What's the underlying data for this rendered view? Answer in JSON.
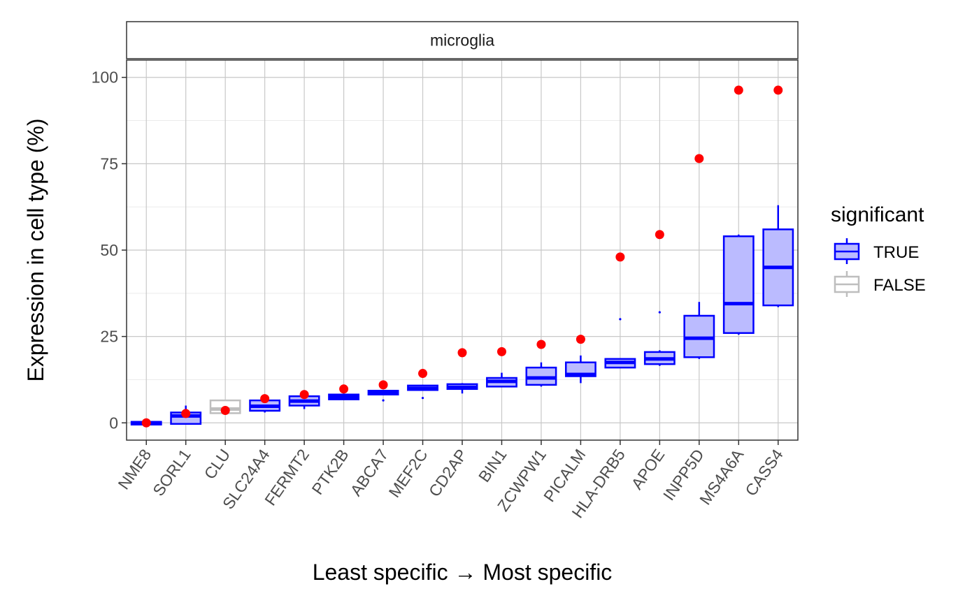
{
  "chart_data": {
    "type": "box",
    "facet": "microglia",
    "xlabel": "Least specific → Most specific",
    "ylabel": "Expression in cell type (%)",
    "ylim": [
      -5,
      105
    ],
    "yticks": [
      0,
      25,
      50,
      75,
      100
    ],
    "grid": true,
    "legend": {
      "title": "significant",
      "position": "right",
      "entries": [
        {
          "label": "TRUE",
          "color": "#0000ff",
          "fill": "#bbbbff"
        },
        {
          "label": "FALSE",
          "color": "#bebebe",
          "fill": "#ffffff"
        }
      ]
    },
    "colors": {
      "true_stroke": "#0000ff",
      "true_fill": "#bbbbff",
      "false_stroke": "#bebebe",
      "point": "#ff0000",
      "grid": "#c8c8c8",
      "grid_minor": "#ebebeb"
    },
    "categories": [
      "NME8",
      "SORL1",
      "CLU",
      "SLC24A4",
      "FERMT2",
      "PTK2B",
      "ABCA7",
      "MEF2C",
      "CD2AP",
      "BIN1",
      "ZCWPW1",
      "PICALM",
      "HLA-DRB5",
      "APOE",
      "INPP5D",
      "MS4A6A",
      "CASS4"
    ],
    "boxes": [
      {
        "significant": true,
        "q1": -0.5,
        "median": 0.0,
        "q3": 0.3,
        "wlo": -0.5,
        "whi": 0.3,
        "outliers": []
      },
      {
        "significant": true,
        "q1": -0.3,
        "median": 2.0,
        "q3": 3.0,
        "wlo": -0.3,
        "whi": 5.0,
        "outliers": []
      },
      {
        "significant": false,
        "q1": 2.8,
        "median": 4.0,
        "q3": 6.5,
        "wlo": 2.8,
        "whi": 6.5,
        "outliers": []
      },
      {
        "significant": true,
        "q1": 3.5,
        "median": 4.8,
        "q3": 6.5,
        "wlo": 3.0,
        "whi": 7.0,
        "outliers": []
      },
      {
        "significant": true,
        "q1": 5.0,
        "median": 6.3,
        "q3": 7.7,
        "wlo": 4.0,
        "whi": 8.0,
        "outliers": []
      },
      {
        "significant": true,
        "q1": 6.8,
        "median": 7.5,
        "q3": 8.2,
        "wlo": 6.8,
        "whi": 8.5,
        "outliers": []
      },
      {
        "significant": true,
        "q1": 8.2,
        "median": 8.8,
        "q3": 9.3,
        "wlo": 8.2,
        "whi": 9.5,
        "outliers": [
          6.5
        ]
      },
      {
        "significant": true,
        "q1": 9.5,
        "median": 10.0,
        "q3": 10.8,
        "wlo": 9.5,
        "whi": 11.0,
        "outliers": [
          7.2
        ]
      },
      {
        "significant": true,
        "q1": 9.8,
        "median": 10.3,
        "q3": 11.2,
        "wlo": 8.5,
        "whi": 11.5,
        "outliers": []
      },
      {
        "significant": true,
        "q1": 10.5,
        "median": 12.0,
        "q3": 13.0,
        "wlo": 10.5,
        "whi": 14.5,
        "outliers": []
      },
      {
        "significant": true,
        "q1": 11.0,
        "median": 13.0,
        "q3": 16.0,
        "wlo": 10.5,
        "whi": 17.5,
        "outliers": []
      },
      {
        "significant": true,
        "q1": 13.5,
        "median": 14.0,
        "q3": 17.5,
        "wlo": 11.5,
        "whi": 19.5,
        "outliers": []
      },
      {
        "significant": true,
        "q1": 16.0,
        "median": 17.5,
        "q3": 18.5,
        "wlo": 16.0,
        "whi": 18.5,
        "outliers": [
          30.0
        ]
      },
      {
        "significant": true,
        "q1": 17.0,
        "median": 18.5,
        "q3": 20.5,
        "wlo": 16.5,
        "whi": 21.0,
        "outliers": [
          32.0
        ]
      },
      {
        "significant": true,
        "q1": 19.0,
        "median": 24.5,
        "q3": 31.0,
        "wlo": 18.5,
        "whi": 35.0,
        "outliers": []
      },
      {
        "significant": true,
        "q1": 26.0,
        "median": 34.5,
        "q3": 54.0,
        "wlo": 25.5,
        "whi": 54.5,
        "outliers": []
      },
      {
        "significant": true,
        "q1": 34.0,
        "median": 45.0,
        "q3": 56.0,
        "wlo": 33.5,
        "whi": 63.0,
        "outliers": []
      }
    ],
    "points": [
      0.0,
      2.7,
      3.6,
      7.0,
      8.2,
      9.8,
      11.0,
      14.3,
      20.3,
      20.6,
      22.7,
      24.2,
      48.0,
      54.5,
      76.5,
      96.3,
      96.3
    ]
  }
}
